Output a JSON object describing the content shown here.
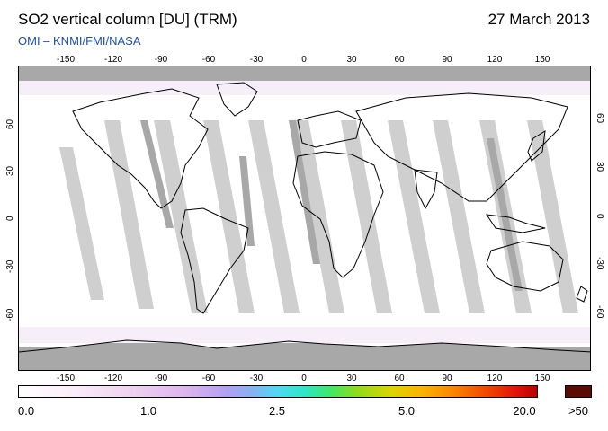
{
  "header": {
    "title": "SO2 vertical column [DU] (TRM)",
    "date": "27 March 2013",
    "subtitle": "OMI  –  KNMI/FMI/NASA"
  },
  "map": {
    "lon_labels": [
      "-150",
      "-120",
      "-90",
      "-60",
      "-30",
      "0",
      "30",
      "60",
      "90",
      "120",
      "150"
    ],
    "lat_labels": [
      "60",
      "30",
      "0",
      "-30",
      "-60"
    ]
  },
  "colorbar": {
    "labels": [
      "0.0",
      "1.0",
      "2.5",
      "5.0",
      "20.0"
    ],
    "max_label": ">50"
  },
  "colors": {
    "subtitle": "#1f4f9a",
    "swath": "#c8c8c8",
    "polar_fill": "#a8a8a8",
    "coast": "#000000",
    "max_box": "#5a0c02"
  }
}
